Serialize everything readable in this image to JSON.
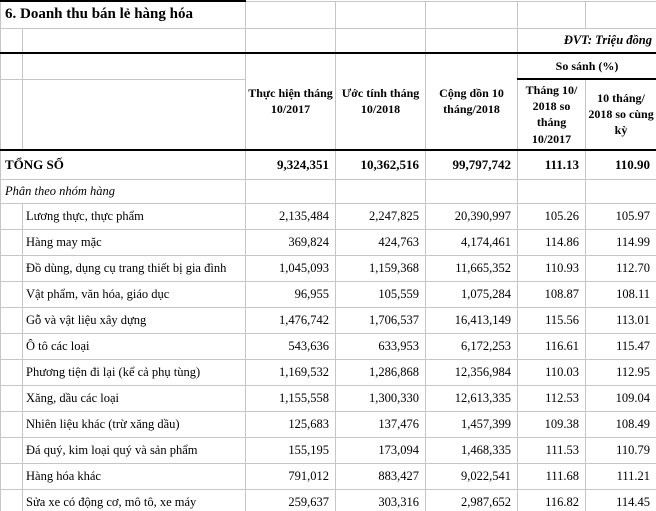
{
  "title": "6. Doanh thu bán lẻ hàng hóa",
  "unit_note": "ĐVT: Triệu đồng",
  "table": {
    "col_headers": {
      "col1": "Thực hiện tháng 10/2017",
      "col2": "Ước tính tháng 10/2018",
      "col3": "Cộng dồn 10 tháng/2018",
      "compare_group": "So sánh (%)",
      "col4": "Tháng 10/ 2018 so tháng 10/2017",
      "col5": "10 tháng/ 2018 so cùng kỳ"
    },
    "rows": [
      {
        "style": "total",
        "label": "TỔNG SỐ",
        "values": [
          "9,324,351",
          "10,362,516",
          "99,797,742",
          "111.13",
          "110.90"
        ]
      },
      {
        "style": "section",
        "label": "Phân theo nhóm hàng",
        "values": [
          "",
          "",
          "",
          "",
          ""
        ]
      },
      {
        "style": "item",
        "label": "Lương thực, thực phẩm",
        "values": [
          "2,135,484",
          "2,247,825",
          "20,390,997",
          "105.26",
          "105.97"
        ]
      },
      {
        "style": "item",
        "label": "Hàng may mặc",
        "values": [
          "369,824",
          "424,763",
          "4,174,461",
          "114.86",
          "114.99"
        ]
      },
      {
        "style": "item",
        "label": "Đồ dùng, dụng cụ trang thiết bị gia đình",
        "values": [
          "1,045,093",
          "1,159,368",
          "11,665,352",
          "110.93",
          "112.70"
        ]
      },
      {
        "style": "item",
        "label": "Vật phẩm, văn hóa, giáo dục",
        "values": [
          "96,955",
          "105,559",
          "1,075,284",
          "108.87",
          "108.11"
        ]
      },
      {
        "style": "item",
        "label": "Gỗ và vật liệu xây dựng",
        "values": [
          "1,476,742",
          "1,706,537",
          "16,413,149",
          "115.56",
          "113.01"
        ]
      },
      {
        "style": "item",
        "label": "Ô tô các loại",
        "values": [
          "543,636",
          "633,953",
          "6,172,253",
          "116.61",
          "115.47"
        ]
      },
      {
        "style": "item",
        "label": "Phương tiện đi lại (kể cả phụ tùng)",
        "values": [
          "1,169,532",
          "1,286,868",
          "12,356,984",
          "110.03",
          "112.95"
        ]
      },
      {
        "style": "item",
        "label": "Xăng, dầu các loại",
        "values": [
          "1,155,558",
          "1,300,330",
          "12,613,335",
          "112.53",
          "109.04"
        ]
      },
      {
        "style": "item",
        "label": "Nhiên liệu khác (trừ xăng dầu)",
        "values": [
          "125,683",
          "137,476",
          "1,457,399",
          "109.38",
          "108.49"
        ]
      },
      {
        "style": "item",
        "label": "Đá quý, kim loại quý và sản phẩm",
        "values": [
          "155,195",
          "173,094",
          "1,468,335",
          "111.53",
          "110.79"
        ]
      },
      {
        "style": "item",
        "label": "Hàng hóa khác",
        "values": [
          "791,012",
          "883,427",
          "9,022,541",
          "111.68",
          "111.21"
        ]
      },
      {
        "style": "item",
        "label": "Sửa xe có động cơ, mô tô, xe máy",
        "values": [
          "259,637",
          "303,316",
          "2,987,652",
          "116.82",
          "114.45"
        ]
      }
    ]
  }
}
